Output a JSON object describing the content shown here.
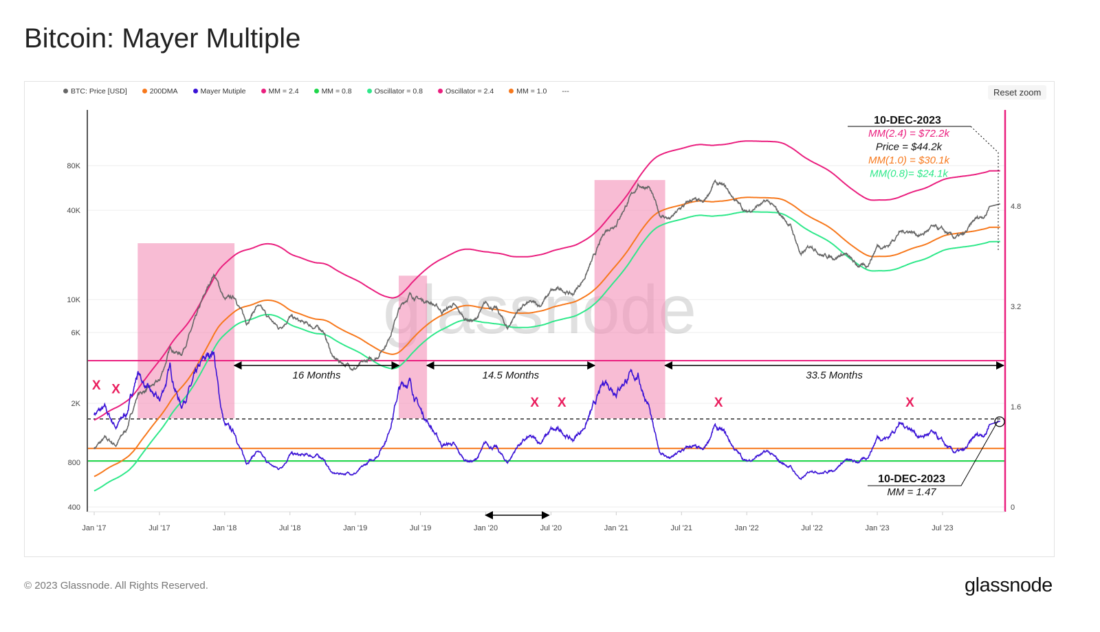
{
  "title": "Bitcoin: Mayer Multiple",
  "reset_zoom": "Reset zoom",
  "footer": "© 2023 Glassnode. All Rights Reserved.",
  "logo": "glassnode",
  "legend": [
    {
      "label": "BTC: Price [USD]",
      "color": "#666666"
    },
    {
      "label": "200DMA",
      "color": "#f7781c"
    },
    {
      "label": "Mayer Mutiple",
      "color": "#3a12d6"
    },
    {
      "label": "MM = 2.4",
      "color": "#ea1e7e"
    },
    {
      "label": "MM = 0.8",
      "color": "#1ed64a"
    },
    {
      "label": "Oscillator = 0.8",
      "color": "#2ee88a"
    },
    {
      "label": "Oscillator = 2.4",
      "color": "#ea1e7e"
    },
    {
      "label": "MM = 1.0",
      "color": "#f7781c"
    },
    {
      "label": "---",
      "color": "#ffffff"
    }
  ],
  "chart_data": {
    "type": "line",
    "title": "Bitcoin: Mayer Multiple",
    "x_ticks": [
      "Jan '17",
      "Jul '17",
      "Jan '18",
      "Jul '18",
      "Jan '19",
      "Jul '19",
      "Jan '20",
      "Jul '20",
      "Jan '21",
      "Jul '21",
      "Jan '22",
      "Jul '22",
      "Jan '23",
      "Jul '23"
    ],
    "y_left_ticks": [
      "400",
      "800",
      "2K",
      "6K",
      "10K",
      "40K",
      "80K"
    ],
    "y_left_tick_values": [
      400,
      800,
      2000,
      6000,
      10000,
      40000,
      80000
    ],
    "y_left_scale": "log",
    "y_right_ticks": [
      "0",
      "1.6",
      "3.2",
      "4.8"
    ],
    "y_right_tick_values": [
      0,
      1.6,
      3.2,
      4.8
    ],
    "price_monthly": {
      "start": "2017-01",
      "values": [
        1000,
        1150,
        1050,
        1350,
        2300,
        2500,
        2800,
        4700,
        4300,
        6400,
        10000,
        15000,
        10000,
        10300,
        7000,
        9200,
        7500,
        6400,
        7700,
        7000,
        6600,
        6300,
        4000,
        3700,
        3450,
        3800,
        4100,
        5300,
        8500,
        10800,
        10000,
        9600,
        8300,
        9200,
        7500,
        7200,
        9350,
        8600,
        6400,
        8600,
        9450,
        9150,
        11300,
        11700,
        10800,
        13800,
        19700,
        29000,
        33000,
        45000,
        58800,
        57700,
        37300,
        35000,
        41500,
        47100,
        43800,
        61300,
        57000,
        46300,
        38500,
        43200,
        45500,
        37700,
        31800,
        19900,
        23300,
        20000,
        19400,
        20500,
        17200,
        16500,
        23100,
        23100,
        28500,
        29200,
        27200,
        30500,
        29200,
        26000,
        27000,
        34500,
        37700,
        44200
      ]
    },
    "dma_initial": 640,
    "multipliers": [
      {
        "name": "MM = 2.4",
        "k": 2.4,
        "color": "#ea1e7e"
      },
      {
        "name": "MM = 1.0",
        "k": 1.0,
        "color": "#f7781c"
      },
      {
        "name": "MM = 0.8",
        "k": 0.8,
        "color": "#2ee88a"
      }
    ],
    "oscillator_levels": [
      {
        "value": 2.4,
        "color": "#ea1e7e"
      },
      {
        "value": 1.0,
        "color": "#f7781c"
      },
      {
        "value": 0.8,
        "color": "#1ed64a"
      },
      {
        "value": 1.47,
        "color": "#000000",
        "dashed": true
      }
    ],
    "shaded_periods": [
      {
        "from": "2017-05",
        "to": "2018-01.9",
        "top_price": 24000
      },
      {
        "from": "2019-05",
        "to": "2019-07.6",
        "top_price": 14500
      },
      {
        "from": "2020-11",
        "to": "2021-05.5",
        "top_price": 64000
      }
    ],
    "durations": [
      {
        "from": "2018-01.9",
        "to": "2019-05",
        "label": "16 Months"
      },
      {
        "from": "2019-07.6",
        "to": "2020-11",
        "label": "14.5 Months"
      },
      {
        "from": "2021-05.5",
        "to": "2023-12.6",
        "label": "33.5 Months"
      }
    ],
    "x_markers": [
      {
        "date": "2017-01.2",
        "mm": 1.96
      },
      {
        "date": "2017-03",
        "mm": 1.9
      },
      {
        "date": "2020-05.5",
        "mm": 1.69
      },
      {
        "date": "2020-08",
        "mm": 1.69
      },
      {
        "date": "2021-10.4",
        "mm": 1.69
      },
      {
        "date": "2023-04",
        "mm": 1.69
      }
    ],
    "x_marker_label": "X",
    "span_arrow": {
      "from": "2020-01",
      "to": "2020-06.8"
    },
    "annotation_top": {
      "date": "10-DEC-2023",
      "lines": [
        {
          "text": "MM(2.4) = $72.2k",
          "color": "#ea1e7e"
        },
        {
          "text": "Price = $44.2k",
          "color": "#111111"
        },
        {
          "text": "MM(1.0) = $30.1k",
          "color": "#f7781c"
        },
        {
          "text": "MM(0.8)= $24.1k",
          "color": "#2ee88a"
        }
      ]
    },
    "annotation_bottom": {
      "date": "10-DEC-2023",
      "text": "MM = 1.47",
      "mm": 1.47
    },
    "watermark": "glassnode"
  }
}
